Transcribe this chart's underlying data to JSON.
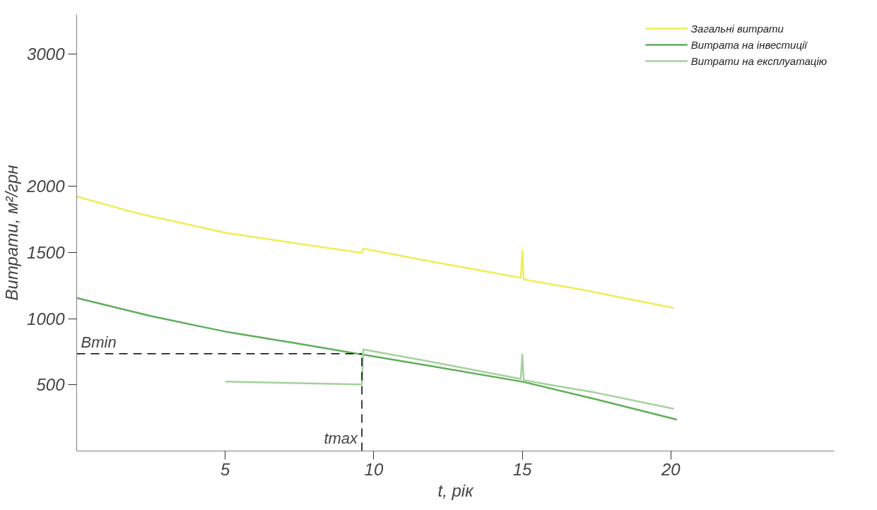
{
  "chart_data": {
    "type": "line",
    "xlabel": "t, рік",
    "ylabel": "Витрати, м²/грн",
    "xlim": [
      0,
      25.5
    ],
    "ylim": [
      0,
      3300
    ],
    "xticks": [
      5,
      10,
      15,
      20
    ],
    "yticks": [
      500,
      1000,
      1500,
      2000,
      3000
    ],
    "legend": "top right",
    "grid": false,
    "series": [
      {
        "name": "Загальні витрати",
        "color": "#eeee55",
        "x": [
          0,
          2,
          5,
          8,
          9.6,
          9.65,
          12,
          14.95,
          15,
          15.05,
          17,
          20.1
        ],
        "values": [
          1924,
          1800,
          1650,
          1550,
          1497,
          1530,
          1430,
          1310,
          1514,
          1297,
          1220,
          1081
        ]
      },
      {
        "name": "Витрата на інвестиції",
        "color": "#5fae5a",
        "x": [
          0,
          2.5,
          5,
          7.5,
          9.6,
          12,
          15,
          17.5,
          20.2
        ],
        "values": [
          1157,
          1020,
          903,
          810,
          730,
          640,
          524,
          390,
          238
        ]
      },
      {
        "name": "Витрати на експлуатацію",
        "color": "#a6d09c",
        "x": [
          5,
          9.6,
          9.65,
          12,
          14.95,
          15,
          15.05,
          17.5,
          20.1
        ],
        "values": [
          524,
          503,
          768,
          672,
          545,
          730,
          535,
          440,
          319
        ]
      }
    ],
    "ref_lines": [
      {
        "axis": "y",
        "value": 735,
        "label": "Bmin",
        "color": "#000000",
        "line_style": "dashed"
      },
      {
        "axis": "x",
        "value": 9.6,
        "label": "tmax",
        "color": "#000000",
        "line_style": "dashed"
      }
    ]
  }
}
